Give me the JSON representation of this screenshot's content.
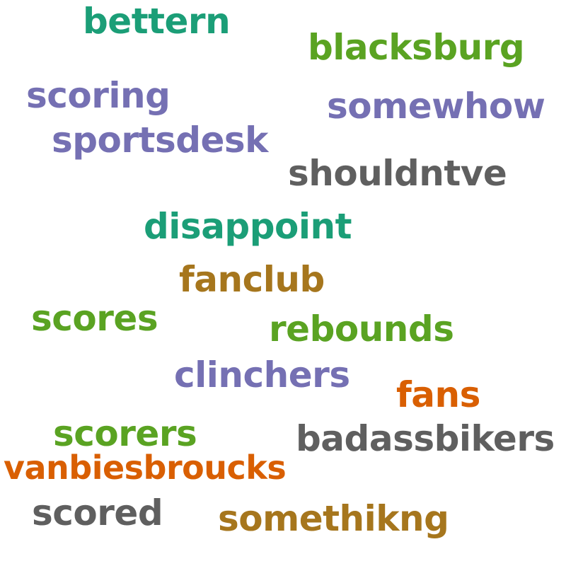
{
  "colors": {
    "teal": "#1b9e77",
    "green": "#5aa322",
    "purple": "#7570b3",
    "gray": "#5f5f5f",
    "brown": "#a6761d",
    "orange": "#d95f02"
  },
  "words": [
    {
      "text": "bettern",
      "color": "#1b9e77"
    },
    {
      "text": "blacksburg",
      "color": "#5aa322"
    },
    {
      "text": "scoring",
      "color": "#7570b3"
    },
    {
      "text": "somewhow",
      "color": "#7570b3"
    },
    {
      "text": "sportsdesk",
      "color": "#7570b3"
    },
    {
      "text": "shouldntve",
      "color": "#5f5f5f"
    },
    {
      "text": "disappoint",
      "color": "#1b9e77"
    },
    {
      "text": "fanclub",
      "color": "#a6761d"
    },
    {
      "text": "scores",
      "color": "#5aa322"
    },
    {
      "text": "rebounds",
      "color": "#5aa322"
    },
    {
      "text": "clinchers",
      "color": "#7570b3"
    },
    {
      "text": "fans",
      "color": "#d95f02"
    },
    {
      "text": "scorers",
      "color": "#5aa322"
    },
    {
      "text": "badassbikers",
      "color": "#5f5f5f"
    },
    {
      "text": "vanbiesbroucks",
      "color": "#d95f02"
    },
    {
      "text": "scored",
      "color": "#5f5f5f"
    },
    {
      "text": "somethikng",
      "color": "#a6761d"
    }
  ]
}
